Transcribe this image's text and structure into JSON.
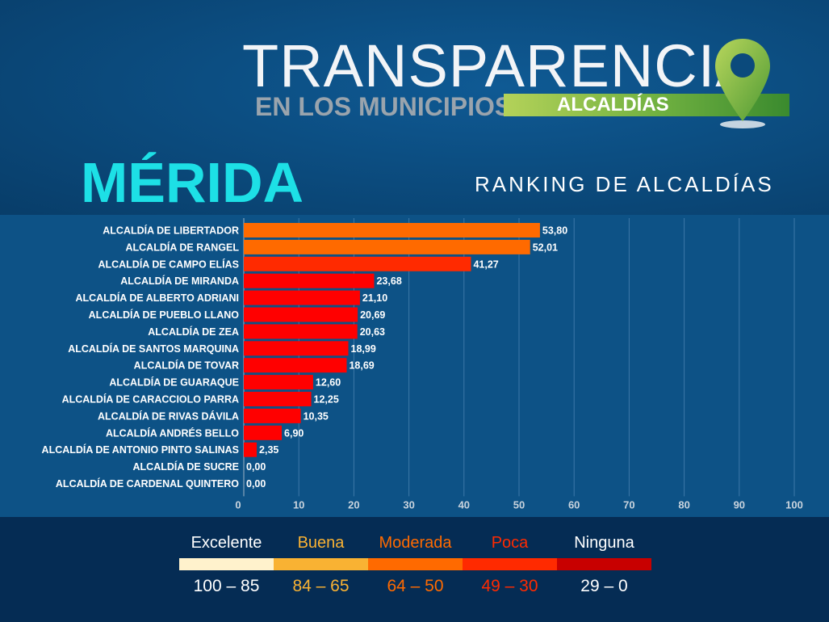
{
  "header": {
    "logo_title": "TRANSPARENCIA",
    "logo_subtitle": "EN LOS MUNICIPIOS",
    "logo_tag": "ALCALDÍAS",
    "state": "MÉRIDA",
    "ranking_title": "RANKING DE ALCALDÍAS"
  },
  "chart_data": {
    "type": "bar",
    "orientation": "horizontal",
    "categories": [
      "ALCALDÍA DE LIBERTADOR",
      "ALCALDÍA DE RANGEL",
      "ALCALDÍA DE CAMPO ELÍAS",
      "ALCALDÍA DE MIRANDA",
      "ALCALDÍA DE ALBERTO ADRIANI",
      "ALCALDÍA DE PUEBLO LLANO",
      "ALCALDÍA DE ZEA",
      "ALCALDÍA DE SANTOS MARQUINA",
      "ALCALDÍA DE TOVAR",
      "ALCALDÍA DE GUARAQUE",
      "ALCALDÍA DE CARACCIOLO PARRA",
      "ALCALDÍA DE RIVAS DÁVILA",
      "ALCALDÍA ANDRÉS BELLO",
      "ALCALDÍA DE ANTONIO PINTO SALINAS",
      "ALCALDÍA DE SUCRE",
      "ALCALDÍA DE CARDENAL QUINTERO"
    ],
    "values": [
      53.8,
      52.01,
      41.27,
      23.68,
      21.1,
      20.69,
      20.63,
      18.99,
      18.69,
      12.6,
      12.25,
      10.35,
      6.9,
      2.35,
      0.0,
      0.0
    ],
    "value_labels": [
      "53,80",
      "52,01",
      "41,27",
      "23,68",
      "21,10",
      "20,69",
      "20,63",
      "18,99",
      "18,69",
      "12,60",
      "12,25",
      "10,35",
      "6,90",
      "2,35",
      "0,00",
      "0,00"
    ],
    "xlim": [
      0,
      100
    ],
    "xticks": [
      0,
      10,
      20,
      30,
      40,
      50,
      60,
      70,
      80,
      90,
      100
    ],
    "grid": true
  },
  "legend": [
    {
      "name": "Excelente",
      "range": "100 – 85",
      "min": 85,
      "max": 100,
      "color": "#fff2cc",
      "text_color": "#ffffff"
    },
    {
      "name": "Buena",
      "range": "84 – 65",
      "min": 65,
      "max": 84,
      "color": "#f9b233",
      "text_color": "#f9b233"
    },
    {
      "name": "Moderada",
      "range": "64 – 50",
      "min": 50,
      "max": 64,
      "color": "#ff6a00",
      "text_color": "#ff6a00"
    },
    {
      "name": "Poca",
      "range": "49 – 30",
      "min": 30,
      "max": 49,
      "color": "#ff2a00",
      "text_color": "#ff2a00"
    },
    {
      "name": "Ninguna",
      "range": "29 – 0",
      "min": 0,
      "max": 29,
      "color": "#c80000",
      "text_color": "#ffffff"
    }
  ]
}
